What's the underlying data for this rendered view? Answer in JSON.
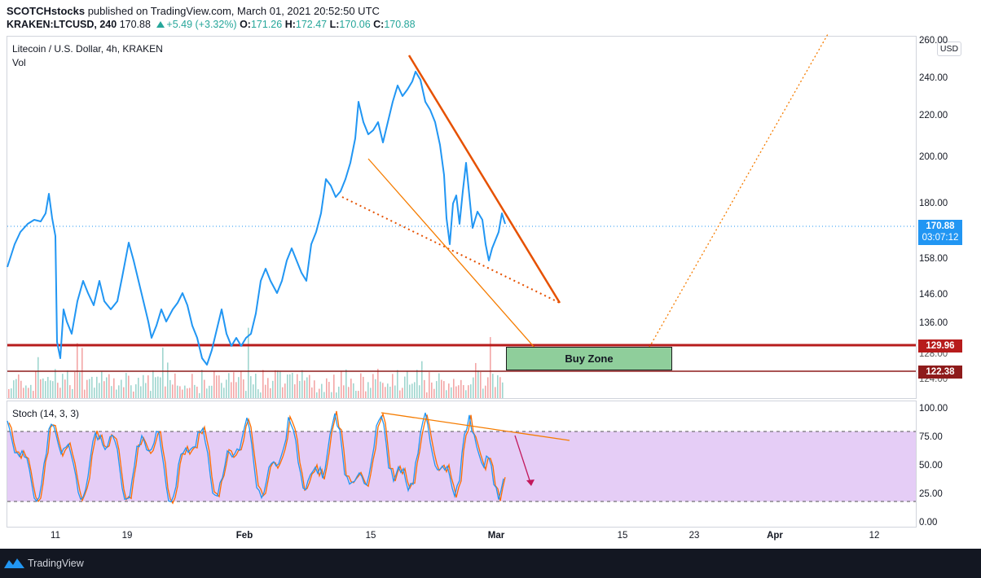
{
  "header": {
    "publisher": "SCOTCHstocks",
    "published_text": "published on TradingView.com, March 01, 2021 20:52:50 UTC",
    "symbol": "KRAKEN:LTCUSD",
    "interval": "240",
    "last": "170.88",
    "change": "+5.49 (+3.32%)",
    "open_label": "O:",
    "open": "171.26",
    "high_label": "H:",
    "high": "172.47",
    "low_label": "L:",
    "low": "170.06",
    "close_label": "C:",
    "close": "170.88"
  },
  "main_pane": {
    "title": "Litecoin / U.S. Dollar, 4h, KRAKEN",
    "volume_label": "Vol",
    "currency": "USD",
    "price_ticks": [
      "260.00",
      "240.00",
      "220.00",
      "200.00",
      "180.00",
      "158.00",
      "146.00",
      "136.00",
      "128.00",
      "124.00"
    ],
    "current_price_tag": "170.88",
    "countdown_tag": "03:07:12",
    "resistance_tag": "129.96",
    "support_tag": "122.38",
    "buy_zone_label": "Buy Zone"
  },
  "stoch_pane": {
    "title": "Stoch (14, 3, 3)",
    "ticks": [
      "100.00",
      "75.00",
      "50.00",
      "25.00",
      "0.00"
    ]
  },
  "time_axis": [
    "11",
    "19",
    "Feb",
    "15",
    "Mar",
    "15",
    "23",
    "Apr",
    "12"
  ],
  "footer": {
    "brand": "TradingView"
  },
  "colors": {
    "price_line": "#2196f3",
    "trendline": "#f57c00",
    "horizontal_level": "#b71c1c",
    "buy_zone": "#8fce9b",
    "stoch_band": "#e1c4f5",
    "stoch_k": "#2196f3",
    "stoch_d": "#ff6d00",
    "arrow": "#c2185b"
  }
}
